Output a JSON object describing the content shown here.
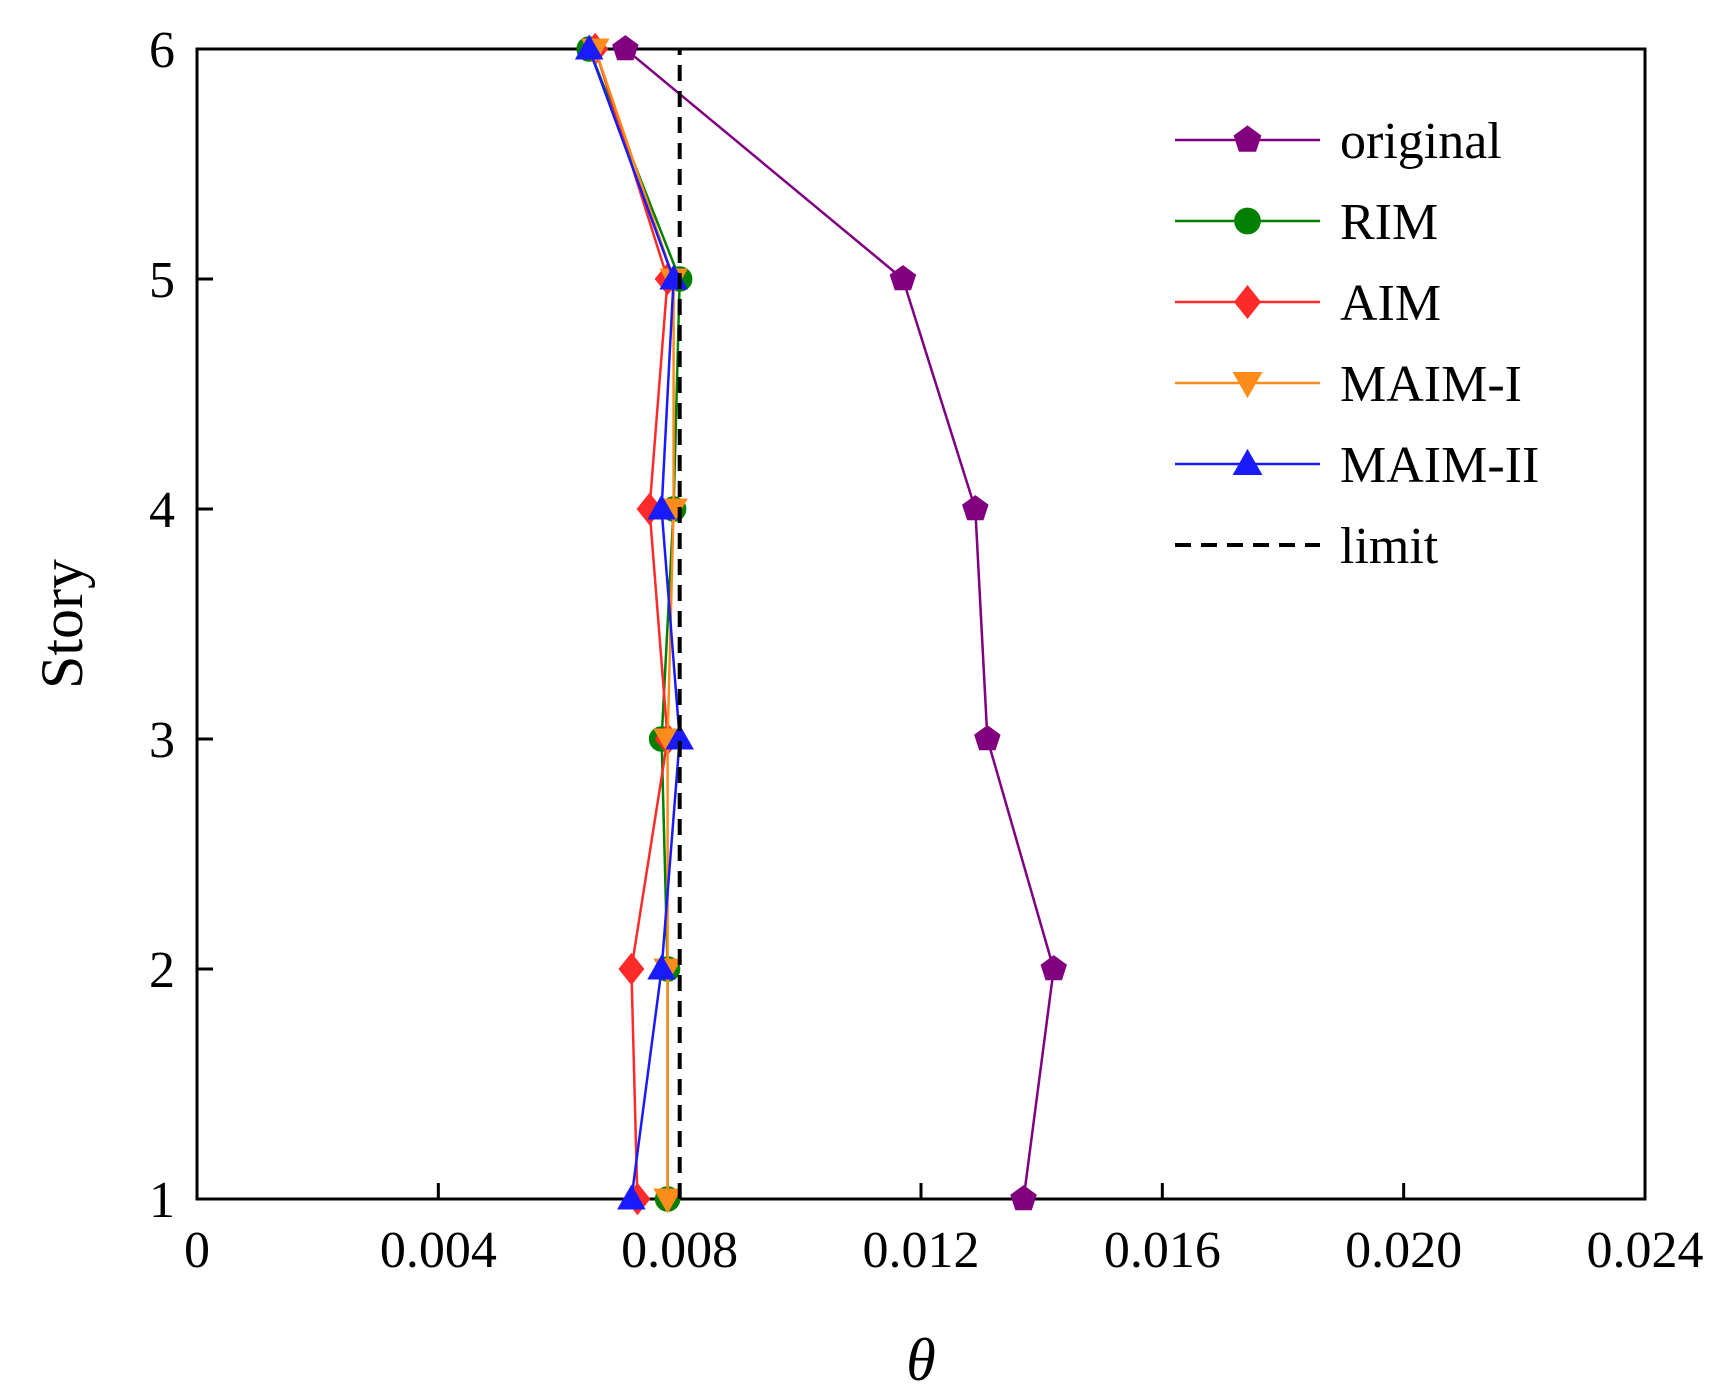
{
  "chart_data": {
    "type": "line",
    "title": "",
    "xlabel": "θ",
    "ylabel": "Story",
    "xlim": [
      0,
      0.024
    ],
    "ylim": [
      1,
      6
    ],
    "xticks": [
      "0",
      "0.004",
      "0.008",
      "0.012",
      "0.016",
      "0.020",
      "0.024"
    ],
    "yticks": [
      "1",
      "2",
      "3",
      "4",
      "5",
      "6"
    ],
    "grid": false,
    "legend_position": "top-right",
    "series": [
      {
        "name": "original",
        "color": "#800080",
        "marker": "pentagon",
        "dashed": false,
        "x": [
          0.0137,
          0.0142,
          0.0131,
          0.0129,
          0.0117,
          0.0071
        ],
        "y": [
          1,
          2,
          3,
          4,
          5,
          6
        ]
      },
      {
        "name": "RIM",
        "color": "#008000",
        "marker": "circle",
        "dashed": false,
        "x": [
          0.0078,
          0.0078,
          0.0077,
          0.0079,
          0.008,
          0.0065
        ],
        "y": [
          1,
          2,
          3,
          4,
          5,
          6
        ]
      },
      {
        "name": "AIM",
        "color": "#ff2a2a",
        "marker": "diamond",
        "dashed": false,
        "x": [
          0.0073,
          0.0072,
          0.0078,
          0.0075,
          0.0078,
          0.0066
        ],
        "y": [
          1,
          2,
          3,
          4,
          5,
          6
        ]
      },
      {
        "name": "MAIM-I",
        "color": "#ff8c1a",
        "marker": "triangle-down",
        "dashed": false,
        "x": [
          0.0078,
          0.0078,
          0.0078,
          0.0079,
          0.0079,
          0.0066
        ],
        "y": [
          1,
          2,
          3,
          4,
          5,
          6
        ]
      },
      {
        "name": "MAIM-II",
        "color": "#1a1aff",
        "marker": "triangle-up",
        "dashed": false,
        "x": [
          0.0072,
          0.0077,
          0.008,
          0.0077,
          0.0079,
          0.0065
        ],
        "y": [
          1,
          2,
          3,
          4,
          5,
          6
        ]
      },
      {
        "name": "limit",
        "color": "#000000",
        "marker": "none",
        "dashed": true,
        "x": [
          0.008,
          0.008
        ],
        "y": [
          1,
          6
        ]
      }
    ]
  }
}
